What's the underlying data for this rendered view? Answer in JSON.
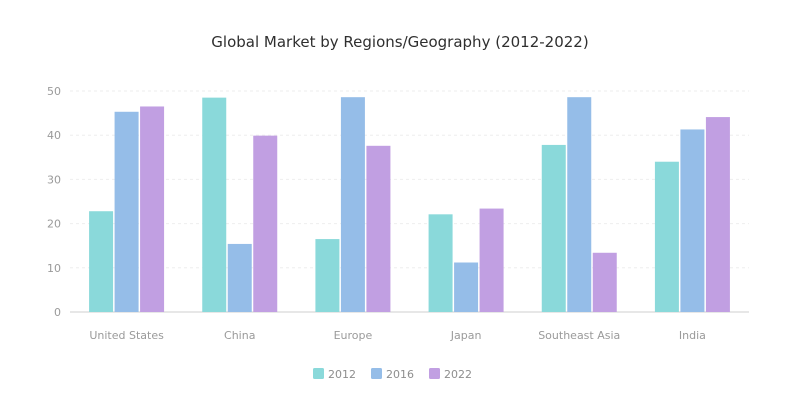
{
  "chart_data": {
    "type": "bar",
    "title": "Global Market by Regions/Geography (2012-2022)",
    "xlabel": "",
    "ylabel": "",
    "categories": [
      "United States",
      "China",
      "Europe",
      "Japan",
      "Southeast Asia",
      "India"
    ],
    "series": [
      {
        "name": "2012",
        "color": "#8ad9da",
        "values": [
          22.8,
          48.5,
          16.5,
          22.1,
          37.8,
          34.0
        ]
      },
      {
        "name": "2016",
        "color": "#95bde8",
        "values": [
          45.3,
          15.4,
          48.6,
          11.2,
          48.6,
          41.3
        ]
      },
      {
        "name": "2022",
        "color": "#c19fe2",
        "values": [
          46.5,
          39.9,
          37.6,
          23.4,
          13.4,
          44.1
        ]
      }
    ],
    "ylim": [
      0,
      50
    ],
    "yticks": [
      0,
      10,
      20,
      30,
      40,
      50
    ],
    "grid": true,
    "legend_position": "bottom-center"
  }
}
